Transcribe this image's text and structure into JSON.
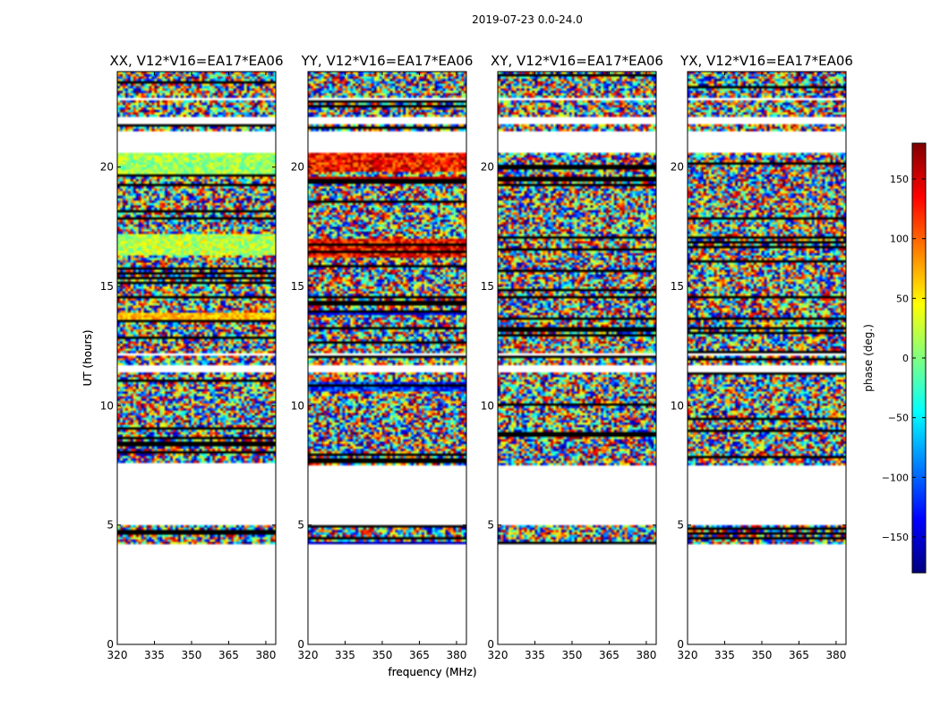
{
  "figure_title": "2019-07-23 0.0-24.0",
  "chart_data": [
    {
      "type": "heatmap",
      "title": "XX, V12*V16=EA17*EA06",
      "polarization": "XX",
      "xlabel": "frequency (MHz)",
      "ylabel": "UT (hours)",
      "xlim": [
        320,
        384
      ],
      "ylim": [
        0,
        24
      ],
      "xticks": [
        "320",
        "335",
        "350",
        "365",
        "380"
      ],
      "yticks": [
        "0",
        "5",
        "10",
        "15",
        "20"
      ],
      "data_intervals_hours": [
        [
          4.2,
          5.0
        ],
        [
          7.6,
          11.4
        ],
        [
          11.7,
          12.1
        ],
        [
          12.2,
          20.6
        ],
        [
          21.5,
          21.8
        ],
        [
          22.1,
          22.8
        ],
        [
          22.9,
          24.0
        ]
      ],
      "bias_bands": [
        {
          "range": [
            19.6,
            20.6
          ],
          "center_deg": 10,
          "spread_deg": 35
        },
        {
          "range": [
            16.3,
            17.2
          ],
          "center_deg": 20,
          "spread_deg": 40
        },
        {
          "range": [
            13.6,
            13.9
          ],
          "center_deg": 70,
          "spread_deg": 30
        }
      ]
    },
    {
      "type": "heatmap",
      "title": "YY, V12*V16=EA17*EA06",
      "polarization": "YY",
      "xlabel": "frequency (MHz)",
      "ylabel": "UT (hours)",
      "xlim": [
        320,
        384
      ],
      "ylim": [
        0,
        24
      ],
      "xticks": [
        "320",
        "335",
        "350",
        "365",
        "380"
      ],
      "yticks": [
        "0",
        "5",
        "10",
        "15",
        "20"
      ],
      "data_intervals_hours": [
        [
          4.2,
          5.0
        ],
        [
          7.5,
          11.4
        ],
        [
          11.7,
          12.1
        ],
        [
          12.2,
          20.6
        ],
        [
          21.5,
          21.8
        ],
        [
          22.1,
          22.8
        ],
        [
          22.9,
          24.0
        ]
      ],
      "bias_bands": [
        {
          "range": [
            19.8,
            20.6
          ],
          "center_deg": 130,
          "spread_deg": 50
        },
        {
          "range": [
            19.3,
            19.6
          ],
          "center_deg": 160,
          "spread_deg": 20
        },
        {
          "range": [
            16.2,
            17.0
          ],
          "center_deg": 140,
          "spread_deg": 50
        },
        {
          "range": [
            13.8,
            14.0
          ],
          "center_deg": -140,
          "spread_deg": 30
        },
        {
          "range": [
            12.0,
            12.2
          ],
          "center_deg": -150,
          "spread_deg": 25
        },
        {
          "range": [
            10.6,
            11.0
          ],
          "center_deg": -120,
          "spread_deg": 50
        },
        {
          "range": [
            4.2,
            4.35
          ],
          "center_deg": -160,
          "spread_deg": 25
        }
      ]
    },
    {
      "type": "heatmap",
      "title": "XY, V12*V16=EA17*EA06",
      "polarization": "XY",
      "xlabel": "",
      "ylabel": "",
      "xlim": [
        320,
        384
      ],
      "ylim": [
        0,
        24
      ],
      "xticks": [
        "320",
        "335",
        "350",
        "365",
        "380"
      ],
      "yticks": [
        "0",
        "5",
        "10",
        "15",
        "20"
      ],
      "data_intervals_hours": [
        [
          4.2,
          5.0
        ],
        [
          7.5,
          11.4
        ],
        [
          11.7,
          12.1
        ],
        [
          12.2,
          20.6
        ],
        [
          21.5,
          21.8
        ],
        [
          22.1,
          22.8
        ],
        [
          22.9,
          24.0
        ]
      ],
      "bias_bands": []
    },
    {
      "type": "heatmap",
      "title": "YX, V12*V16=EA17*EA06",
      "polarization": "YX",
      "xlabel": "",
      "ylabel": "",
      "xlim": [
        320,
        384
      ],
      "ylim": [
        0,
        24
      ],
      "xticks": [
        "320",
        "335",
        "350",
        "365",
        "380"
      ],
      "yticks": [
        "0",
        "5",
        "10",
        "15",
        "20"
      ],
      "data_intervals_hours": [
        [
          4.2,
          5.0
        ],
        [
          7.5,
          11.4
        ],
        [
          11.7,
          12.1
        ],
        [
          12.2,
          20.6
        ],
        [
          21.5,
          21.8
        ],
        [
          22.1,
          22.8
        ],
        [
          22.9,
          24.0
        ]
      ],
      "bias_bands": []
    }
  ],
  "colorbar": {
    "label": "phase (deg.)",
    "range": [
      -180,
      180
    ],
    "ticks": [
      "150",
      "100",
      "50",
      "0",
      "−50",
      "−100",
      "−150"
    ],
    "tick_values": [
      150,
      100,
      50,
      0,
      -50,
      -100,
      -150
    ],
    "colormap": "jet",
    "colors": [
      "#00007f",
      "#0000ff",
      "#0080ff",
      "#00ffff",
      "#80ff80",
      "#ffff00",
      "#ff8000",
      "#ff0000",
      "#7f0000"
    ]
  }
}
